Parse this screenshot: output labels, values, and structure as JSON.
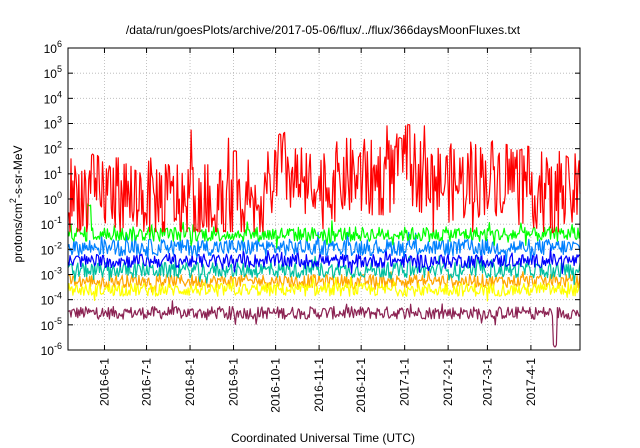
{
  "chart_data": {
    "type": "line",
    "title": "/data/run/goesPlots/archive/2017-05-06/flux/../flux/366daysMoonFluxes.txt",
    "xlabel": "Coordinated Universal Time (UTC)",
    "ylabel_parts": [
      "protons/cm",
      "2",
      "-s-sr-MeV"
    ],
    "y_scale": "log",
    "ylim": [
      1e-06,
      1000000.0
    ],
    "y_ticks": [
      {
        "base": "10",
        "exp": "-6"
      },
      {
        "base": "10",
        "exp": "-5"
      },
      {
        "base": "10",
        "exp": "-4"
      },
      {
        "base": "10",
        "exp": "-3"
      },
      {
        "base": "10",
        "exp": "-2"
      },
      {
        "base": "10",
        "exp": "-1"
      },
      {
        "base": "10",
        "exp": "0"
      },
      {
        "base": "10",
        "exp": "1"
      },
      {
        "base": "10",
        "exp": "2"
      },
      {
        "base": "10",
        "exp": "3"
      },
      {
        "base": "10",
        "exp": "4"
      },
      {
        "base": "10",
        "exp": "5"
      },
      {
        "base": "10",
        "exp": "6"
      }
    ],
    "xlim": [
      "2016-05-06",
      "2017-05-06"
    ],
    "x_ticks": [
      "2016-6-1",
      "2016-7-1",
      "2016-8-1",
      "2016-9-1",
      "2016-10-1",
      "2016-11-1",
      "2016-12-1",
      "2017-1-1",
      "2017-2-1",
      "2017-3-1",
      "2017-4-1"
    ],
    "grid": true,
    "legend": "none",
    "series": [
      {
        "color": "#8b2252",
        "level": 3e-05,
        "min": 1.5e-05,
        "max": 7e-05,
        "events": [
          {
            "date": "2017-04-18",
            "value": 1.5e-06
          }
        ]
      },
      {
        "color": "#ffa500",
        "level": 0.00055,
        "min": 0.0002,
        "max": 0.001
      },
      {
        "color": "#ffff00",
        "level": 0.00025,
        "min": 0.0001,
        "max": 0.0005
      },
      {
        "color": "#00c0a0",
        "level": 0.0015,
        "min": 0.0006,
        "max": 0.004
      },
      {
        "color": "#0000ff",
        "level": 0.0035,
        "min": 0.0015,
        "max": 0.008
      },
      {
        "color": "#0080ff",
        "level": 0.012,
        "min": 0.004,
        "max": 0.03
      },
      {
        "color": "#00ff00",
        "level": 0.04,
        "min": 0.015,
        "max": 0.09,
        "events": [
          {
            "date": "2016-05-21",
            "value": 0.6
          }
        ]
      },
      {
        "color": "#ff0000",
        "level": 2.0,
        "min": 0.05,
        "max": 800,
        "anchors": [
          {
            "date": "2016-05-06",
            "value": 1.5
          },
          {
            "date": "2016-06-01",
            "value": 2.0
          },
          {
            "date": "2016-07-01",
            "value": 1.2
          },
          {
            "date": "2016-08-01",
            "value": 1.0
          },
          {
            "date": "2016-08-20",
            "value": 0.6
          },
          {
            "date": "2016-09-10",
            "value": 0.3
          },
          {
            "date": "2016-09-25",
            "value": 2.0
          },
          {
            "date": "2016-10-05",
            "value": 20
          },
          {
            "date": "2016-10-20",
            "value": 3.0
          },
          {
            "date": "2016-11-01",
            "value": 2.0
          },
          {
            "date": "2016-11-20",
            "value": 8.0
          },
          {
            "date": "2016-12-10",
            "value": 6.0
          },
          {
            "date": "2016-12-25",
            "value": 10
          },
          {
            "date": "2017-01-05",
            "value": 20
          },
          {
            "date": "2017-01-20",
            "value": 5.0
          },
          {
            "date": "2017-02-10",
            "value": 4.0
          },
          {
            "date": "2017-03-01",
            "value": 8.0
          },
          {
            "date": "2017-03-20",
            "value": 8.0
          },
          {
            "date": "2017-04-01",
            "value": 3.0
          },
          {
            "date": "2017-04-15",
            "value": 1.0
          },
          {
            "date": "2017-05-06",
            "value": 2.0
          }
        ],
        "events": [
          {
            "date": "2016-09-02",
            "value": 80
          },
          {
            "date": "2016-10-04",
            "value": 350
          },
          {
            "date": "2016-12-29",
            "value": 250
          },
          {
            "date": "2017-01-04",
            "value": 800
          },
          {
            "date": "2017-03-25",
            "value": 100
          },
          {
            "date": "2017-04-17",
            "value": 0.05
          }
        ]
      }
    ]
  }
}
